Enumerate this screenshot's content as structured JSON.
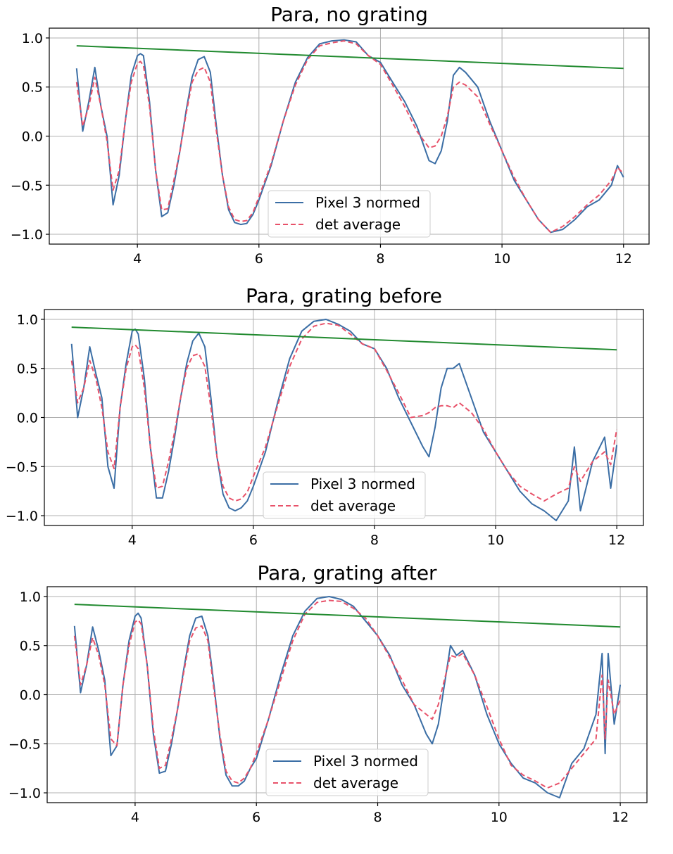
{
  "colors": {
    "pixel": "#3b6ea5",
    "average": "#e8526a",
    "trend": "#218a2f",
    "grid": "#b0b0b0"
  },
  "chart_data": [
    {
      "type": "line",
      "title": "Para, no grating",
      "xlim": [
        2.55,
        12.42
      ],
      "ylim": [
        -1.1,
        1.1
      ],
      "xticks": [
        4,
        6,
        8,
        10,
        12
      ],
      "yticks": [
        1.0,
        0.5,
        0.0,
        -0.5,
        -1.0
      ],
      "xtick_labels": [
        "4",
        "6",
        "8",
        "10",
        "12"
      ],
      "ytick_labels": [
        "1.0",
        "0.5",
        "0.0",
        "−0.5",
        "−1.0"
      ],
      "grid": true,
      "legend_position": "lower center",
      "series": [
        {
          "name": "Pixel 3 normed",
          "style": "solid",
          "color": "#3b6ea5",
          "x": [
            3.0,
            3.1,
            3.2,
            3.3,
            3.4,
            3.5,
            3.6,
            3.7,
            3.8,
            3.9,
            4.0,
            4.05,
            4.1,
            4.2,
            4.3,
            4.4,
            4.5,
            4.6,
            4.7,
            4.8,
            4.9,
            5.0,
            5.1,
            5.2,
            5.3,
            5.4,
            5.5,
            5.6,
            5.7,
            5.8,
            5.9,
            6.0,
            6.2,
            6.4,
            6.6,
            6.8,
            7.0,
            7.2,
            7.4,
            7.6,
            7.8,
            8.0,
            8.2,
            8.4,
            8.6,
            8.8,
            8.9,
            9.0,
            9.1,
            9.2,
            9.3,
            9.4,
            9.6,
            9.8,
            10.0,
            10.2,
            10.4,
            10.6,
            10.8,
            11.0,
            11.2,
            11.4,
            11.6,
            11.8,
            11.9,
            12.0
          ],
          "y": [
            0.69,
            0.05,
            0.35,
            0.7,
            0.3,
            0.0,
            -0.7,
            -0.4,
            0.15,
            0.62,
            0.82,
            0.84,
            0.82,
            0.35,
            -0.35,
            -0.82,
            -0.78,
            -0.5,
            -0.15,
            0.25,
            0.6,
            0.78,
            0.81,
            0.65,
            0.1,
            -0.4,
            -0.75,
            -0.88,
            -0.9,
            -0.89,
            -0.8,
            -0.65,
            -0.3,
            0.15,
            0.55,
            0.8,
            0.94,
            0.97,
            0.98,
            0.96,
            0.82,
            0.75,
            0.55,
            0.35,
            0.1,
            -0.25,
            -0.28,
            -0.15,
            0.15,
            0.62,
            0.7,
            0.65,
            0.5,
            0.15,
            -0.15,
            -0.45,
            -0.65,
            -0.85,
            -0.98,
            -0.95,
            -0.85,
            -0.72,
            -0.65,
            -0.5,
            -0.3,
            -0.42
          ]
        },
        {
          "name": "det average",
          "style": "dashed",
          "color": "#e8526a",
          "x": [
            3.0,
            3.1,
            3.2,
            3.3,
            3.4,
            3.5,
            3.6,
            3.7,
            3.8,
            3.9,
            4.0,
            4.05,
            4.1,
            4.2,
            4.3,
            4.4,
            4.5,
            4.6,
            4.7,
            4.8,
            4.9,
            5.0,
            5.1,
            5.2,
            5.3,
            5.4,
            5.5,
            5.6,
            5.7,
            5.8,
            5.9,
            6.0,
            6.2,
            6.4,
            6.6,
            6.8,
            7.0,
            7.2,
            7.4,
            7.6,
            7.8,
            8.0,
            8.2,
            8.4,
            8.6,
            8.8,
            8.9,
            9.0,
            9.1,
            9.2,
            9.3,
            9.4,
            9.6,
            9.8,
            10.0,
            10.2,
            10.4,
            10.6,
            10.8,
            11.0,
            11.2,
            11.4,
            11.6,
            11.8,
            11.9,
            12.0
          ],
          "y": [
            0.55,
            0.1,
            0.3,
            0.6,
            0.3,
            -0.05,
            -0.55,
            -0.35,
            0.15,
            0.55,
            0.74,
            0.76,
            0.72,
            0.3,
            -0.35,
            -0.75,
            -0.74,
            -0.45,
            -0.15,
            0.22,
            0.55,
            0.67,
            0.7,
            0.55,
            0.05,
            -0.4,
            -0.72,
            -0.85,
            -0.87,
            -0.86,
            -0.78,
            -0.62,
            -0.28,
            0.15,
            0.52,
            0.78,
            0.92,
            0.95,
            0.97,
            0.94,
            0.82,
            0.73,
            0.52,
            0.3,
            0.05,
            -0.12,
            -0.1,
            0.0,
            0.2,
            0.5,
            0.55,
            0.52,
            0.4,
            0.12,
            -0.15,
            -0.42,
            -0.65,
            -0.85,
            -0.98,
            -0.92,
            -0.82,
            -0.7,
            -0.6,
            -0.45,
            -0.32,
            -0.38
          ]
        },
        {
          "name": "",
          "style": "solid",
          "color": "#218a2f",
          "x": [
            3.0,
            12.0
          ],
          "y": [
            0.92,
            0.69
          ]
        }
      ]
    },
    {
      "type": "line",
      "title": "Para, grating before",
      "xlim": [
        2.55,
        12.44
      ],
      "ylim": [
        -1.1,
        1.1
      ],
      "xticks": [
        4,
        6,
        8,
        10,
        12
      ],
      "yticks": [
        1.0,
        0.5,
        0.0,
        -0.5,
        -1.0
      ],
      "xtick_labels": [
        "4",
        "6",
        "8",
        "10",
        "12"
      ],
      "ytick_labels": [
        "1.0",
        "0.5",
        "0.0",
        "−0.5",
        "−1.0"
      ],
      "grid": true,
      "legend_position": "lower center",
      "series": [
        {
          "name": "Pixel 3 normed",
          "style": "solid",
          "color": "#3b6ea5",
          "x": [
            3.0,
            3.1,
            3.2,
            3.3,
            3.4,
            3.5,
            3.6,
            3.7,
            3.8,
            3.9,
            4.0,
            4.05,
            4.1,
            4.2,
            4.3,
            4.4,
            4.5,
            4.6,
            4.7,
            4.8,
            4.9,
            5.0,
            5.1,
            5.2,
            5.3,
            5.4,
            5.5,
            5.6,
            5.7,
            5.8,
            5.9,
            6.0,
            6.2,
            6.4,
            6.6,
            6.8,
            7.0,
            7.2,
            7.4,
            7.6,
            7.8,
            8.0,
            8.2,
            8.4,
            8.6,
            8.8,
            8.9,
            9.0,
            9.1,
            9.2,
            9.3,
            9.4,
            9.6,
            9.8,
            10.0,
            10.2,
            10.4,
            10.6,
            10.8,
            11.0,
            11.2,
            11.3,
            11.4,
            11.6,
            11.8,
            11.9,
            12.0
          ],
          "y": [
            0.75,
            0.0,
            0.3,
            0.72,
            0.45,
            0.2,
            -0.5,
            -0.72,
            0.1,
            0.55,
            0.88,
            0.9,
            0.85,
            0.4,
            -0.3,
            -0.82,
            -0.82,
            -0.55,
            -0.2,
            0.2,
            0.55,
            0.78,
            0.86,
            0.72,
            0.2,
            -0.4,
            -0.78,
            -0.92,
            -0.95,
            -0.92,
            -0.85,
            -0.7,
            -0.35,
            0.15,
            0.6,
            0.88,
            0.98,
            1.0,
            0.95,
            0.88,
            0.75,
            0.7,
            0.5,
            0.2,
            -0.05,
            -0.3,
            -0.4,
            -0.1,
            0.3,
            0.5,
            0.5,
            0.55,
            0.2,
            -0.15,
            -0.35,
            -0.55,
            -0.75,
            -0.88,
            -0.95,
            -1.05,
            -0.85,
            -0.3,
            -0.95,
            -0.45,
            -0.2,
            -0.72,
            -0.28
          ]
        },
        {
          "name": "det average",
          "style": "dashed",
          "color": "#e8526a",
          "x": [
            3.0,
            3.1,
            3.2,
            3.3,
            3.4,
            3.5,
            3.6,
            3.7,
            3.8,
            3.9,
            4.0,
            4.05,
            4.1,
            4.2,
            4.3,
            4.4,
            4.5,
            4.6,
            4.7,
            4.8,
            4.9,
            5.0,
            5.1,
            5.2,
            5.3,
            5.4,
            5.5,
            5.6,
            5.7,
            5.8,
            5.9,
            6.0,
            6.2,
            6.4,
            6.6,
            6.8,
            7.0,
            7.2,
            7.4,
            7.6,
            7.8,
            8.0,
            8.2,
            8.4,
            8.6,
            8.8,
            8.9,
            9.0,
            9.1,
            9.2,
            9.3,
            9.4,
            9.6,
            9.8,
            10.0,
            10.2,
            10.4,
            10.6,
            10.8,
            11.0,
            11.2,
            11.3,
            11.4,
            11.6,
            11.8,
            11.9,
            12.0
          ],
          "y": [
            0.58,
            0.15,
            0.3,
            0.58,
            0.4,
            0.1,
            -0.35,
            -0.52,
            0.1,
            0.5,
            0.72,
            0.74,
            0.7,
            0.3,
            -0.3,
            -0.72,
            -0.7,
            -0.45,
            -0.15,
            0.2,
            0.5,
            0.63,
            0.65,
            0.52,
            0.1,
            -0.4,
            -0.7,
            -0.82,
            -0.85,
            -0.83,
            -0.76,
            -0.6,
            -0.3,
            0.12,
            0.52,
            0.8,
            0.93,
            0.96,
            0.94,
            0.85,
            0.75,
            0.7,
            0.48,
            0.25,
            0.0,
            0.02,
            0.05,
            0.1,
            0.12,
            0.12,
            0.1,
            0.15,
            0.05,
            -0.12,
            -0.35,
            -0.55,
            -0.7,
            -0.78,
            -0.85,
            -0.78,
            -0.72,
            -0.5,
            -0.65,
            -0.45,
            -0.35,
            -0.48,
            -0.12
          ]
        },
        {
          "name": "",
          "style": "solid",
          "color": "#218a2f",
          "x": [
            3.0,
            12.0
          ],
          "y": [
            0.92,
            0.69
          ]
        }
      ]
    },
    {
      "type": "line",
      "title": "Para, grating after",
      "xlim": [
        2.55,
        12.44
      ],
      "ylim": [
        -1.1,
        1.1
      ],
      "xticks": [
        4,
        6,
        8,
        10,
        12
      ],
      "yticks": [
        1.0,
        0.5,
        0.0,
        -0.5,
        -1.0
      ],
      "xtick_labels": [
        "4",
        "6",
        "8",
        "10",
        "12"
      ],
      "ytick_labels": [
        "1.0",
        "0.5",
        "0.0",
        "−0.5",
        "−1.0"
      ],
      "grid": true,
      "legend_position": "lower center",
      "series": [
        {
          "name": "Pixel 3 normed",
          "style": "solid",
          "color": "#3b6ea5",
          "x": [
            3.0,
            3.1,
            3.2,
            3.3,
            3.4,
            3.5,
            3.6,
            3.7,
            3.8,
            3.9,
            4.0,
            4.05,
            4.1,
            4.2,
            4.3,
            4.4,
            4.5,
            4.6,
            4.7,
            4.8,
            4.9,
            5.0,
            5.1,
            5.2,
            5.3,
            5.4,
            5.5,
            5.6,
            5.7,
            5.8,
            5.9,
            6.0,
            6.2,
            6.4,
            6.6,
            6.8,
            7.0,
            7.2,
            7.4,
            7.6,
            7.8,
            8.0,
            8.2,
            8.4,
            8.6,
            8.8,
            8.9,
            9.0,
            9.1,
            9.2,
            9.3,
            9.4,
            9.6,
            9.8,
            10.0,
            10.2,
            10.4,
            10.6,
            10.8,
            11.0,
            11.2,
            11.4,
            11.6,
            11.7,
            11.75,
            11.8,
            11.9,
            12.0
          ],
          "y": [
            0.7,
            0.02,
            0.3,
            0.69,
            0.45,
            0.15,
            -0.62,
            -0.52,
            0.1,
            0.55,
            0.8,
            0.83,
            0.78,
            0.3,
            -0.4,
            -0.8,
            -0.78,
            -0.5,
            -0.15,
            0.25,
            0.6,
            0.78,
            0.8,
            0.6,
            0.1,
            -0.45,
            -0.82,
            -0.93,
            -0.93,
            -0.88,
            -0.75,
            -0.65,
            -0.25,
            0.2,
            0.6,
            0.85,
            0.98,
            1.0,
            0.97,
            0.9,
            0.75,
            0.6,
            0.4,
            0.1,
            -0.1,
            -0.4,
            -0.5,
            -0.3,
            0.1,
            0.5,
            0.4,
            0.45,
            0.2,
            -0.2,
            -0.5,
            -0.7,
            -0.85,
            -0.9,
            -1.0,
            -1.05,
            -0.7,
            -0.55,
            -0.2,
            0.42,
            -0.6,
            0.42,
            -0.3,
            0.1
          ]
        },
        {
          "name": "det average",
          "style": "dashed",
          "color": "#e8526a",
          "x": [
            3.0,
            3.1,
            3.2,
            3.3,
            3.4,
            3.5,
            3.6,
            3.7,
            3.8,
            3.9,
            4.0,
            4.05,
            4.1,
            4.2,
            4.3,
            4.4,
            4.5,
            4.6,
            4.7,
            4.8,
            4.9,
            5.0,
            5.1,
            5.2,
            5.3,
            5.4,
            5.5,
            5.6,
            5.7,
            5.8,
            5.9,
            6.0,
            6.2,
            6.4,
            6.6,
            6.8,
            7.0,
            7.2,
            7.4,
            7.6,
            7.8,
            8.0,
            8.2,
            8.4,
            8.6,
            8.8,
            8.9,
            9.0,
            9.1,
            9.2,
            9.3,
            9.4,
            9.6,
            9.8,
            10.0,
            10.2,
            10.4,
            10.6,
            10.8,
            11.0,
            11.2,
            11.4,
            11.6,
            11.7,
            11.75,
            11.8,
            11.9,
            12.0
          ],
          "y": [
            0.6,
            0.1,
            0.3,
            0.58,
            0.4,
            0.1,
            -0.45,
            -0.52,
            0.1,
            0.5,
            0.74,
            0.76,
            0.72,
            0.3,
            -0.35,
            -0.75,
            -0.72,
            -0.45,
            -0.15,
            0.22,
            0.55,
            0.68,
            0.7,
            0.55,
            0.05,
            -0.42,
            -0.78,
            -0.88,
            -0.9,
            -0.85,
            -0.75,
            -0.6,
            -0.25,
            0.15,
            0.55,
            0.82,
            0.94,
            0.96,
            0.95,
            0.88,
            0.78,
            0.6,
            0.38,
            0.15,
            -0.1,
            -0.2,
            -0.25,
            -0.1,
            0.15,
            0.4,
            0.38,
            0.42,
            0.2,
            -0.12,
            -0.45,
            -0.72,
            -0.82,
            -0.88,
            -0.95,
            -0.9,
            -0.75,
            -0.6,
            -0.45,
            0.2,
            -0.45,
            0.15,
            -0.2,
            -0.05
          ]
        },
        {
          "name": "",
          "style": "solid",
          "color": "#218a2f",
          "x": [
            3.0,
            12.0
          ],
          "y": [
            0.92,
            0.69
          ]
        }
      ]
    }
  ]
}
